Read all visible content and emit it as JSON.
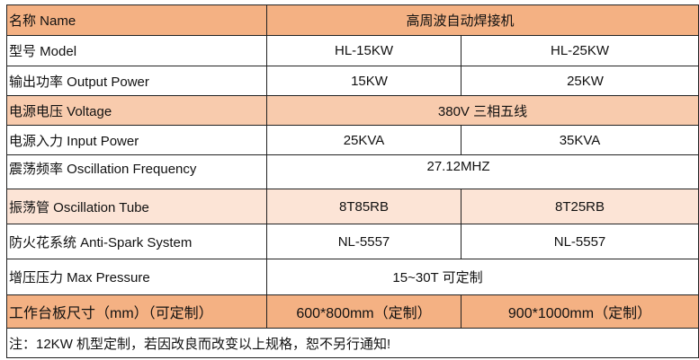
{
  "colors": {
    "header": "#F4B183",
    "voltage_row": "#F8CBAD",
    "tube_row": "#FCE4D6",
    "size_row": "#F4B183"
  },
  "header": {
    "label": "名称 Name",
    "value": "高周波自动焊接机"
  },
  "rows": [
    {
      "label": "型号 Model",
      "values": [
        "HL-15KW",
        "HL-25KW"
      ]
    },
    {
      "label": "输出功率 Output Power",
      "values": [
        "15KW",
        "25KW"
      ]
    },
    {
      "label": "电源电压 Voltage",
      "value": "380V 三相五线"
    },
    {
      "label": "电源入力 Input Power",
      "values": [
        "25KVA",
        "35KVA"
      ]
    },
    {
      "label": "震荡频率 Oscillation Frequency",
      "value": "27.12MHZ"
    },
    {
      "label": "振荡管  Oscillation Tube",
      "values": [
        "8T85RB",
        "8T25RB"
      ]
    },
    {
      "label": "防火花系统  Anti-Spark System",
      "values": [
        "NL-5557",
        "NL-5557"
      ]
    },
    {
      "label": "增压压力   Max Pressure",
      "value": "15~30T 可定制"
    },
    {
      "label": "工作台板尺寸（mm）（可定制）",
      "values": [
        "600*800mm（定制）",
        "900*1000mm（定制）"
      ]
    }
  ],
  "note": "注：12KW 机型定制，若因改良而改变以上规格，恕不另行通知!"
}
